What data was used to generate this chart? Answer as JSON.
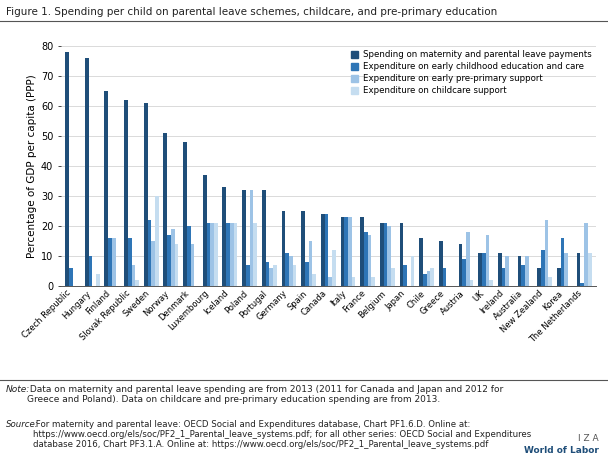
{
  "title": "Figure 1. Spending per child on parental leave schemes, childcare, and pre-primary education",
  "ylabel": "Percentage of GDP per capita (PPP)",
  "ylim": [
    0,
    80
  ],
  "yticks": [
    0,
    10,
    20,
    30,
    40,
    50,
    60,
    70,
    80
  ],
  "countries": [
    "Czech Republic",
    "Hungary",
    "Finland",
    "Slovak Republic",
    "Sweden",
    "Norway",
    "Denmark",
    "Luxembourg",
    "Iceland",
    "Poland",
    "Portugal",
    "Germany",
    "Spain",
    "Canada",
    "Italy",
    "France",
    "Belgium",
    "Japan",
    "Chile",
    "Greece",
    "Austria",
    "UK",
    "Ireland",
    "Australia",
    "New Zealand",
    "Korea",
    "The Netherlands"
  ],
  "series": {
    "maternity": [
      78,
      76,
      65,
      62,
      61,
      51,
      48,
      37,
      33,
      32,
      32,
      25,
      25,
      24,
      23,
      23,
      21,
      21,
      16,
      15,
      14,
      11,
      11,
      10,
      6,
      6,
      11
    ],
    "ecec": [
      6,
      10,
      16,
      16,
      22,
      17,
      20,
      21,
      21,
      7,
      8,
      11,
      8,
      24,
      23,
      18,
      21,
      7,
      4,
      6,
      9,
      11,
      6,
      7,
      12,
      16,
      1
    ],
    "preprimary": [
      0,
      0,
      16,
      7,
      15,
      19,
      14,
      21,
      21,
      32,
      6,
      10,
      15,
      3,
      23,
      17,
      20,
      0,
      5,
      0,
      18,
      17,
      10,
      10,
      22,
      11,
      21
    ],
    "childcare": [
      0,
      4,
      0,
      2,
      30,
      14,
      0,
      21,
      21,
      21,
      7,
      7,
      4,
      12,
      3,
      3,
      6,
      10,
      6,
      0,
      2,
      2,
      0,
      0,
      3,
      0,
      11
    ]
  },
  "colors": {
    "maternity": "#1f4e79",
    "ecec": "#2e75b6",
    "preprimary": "#9dc3e6",
    "childcare": "#c5ddf0"
  },
  "legend_labels": [
    "Spending on maternity and parental leave payments",
    "Expenditure on early childhood education and care",
    "Expenditure on early pre-primary support",
    "Expenditure on childcare support"
  ],
  "note_italic": "Note:",
  "note_rest": " Data on maternity and parental leave spending are from 2013 (2011 for Canada and Japan and 2012 for\nGreece and Poland). Data on childcare and pre-primary education spending are from 2013.",
  "source_italic": "Source:",
  "source_rest": " For maternity and parental leave: OECD Social and Expenditures database, Chart PF1.6.D. Online at:\nhttps://www.oecd.org/els/soc/PF2_1_Parental_leave_systems.pdf; for all other series: OECD Social and Expenditures\ndatabase 2016, Chart PF3.1.A. Online at: https://www.oecd.org/els/soc/PF2_1_Parental_leave_systems.pdf",
  "watermark_line1": "I Z A",
  "watermark_line2": "World of Labor",
  "background_color": "#ffffff"
}
